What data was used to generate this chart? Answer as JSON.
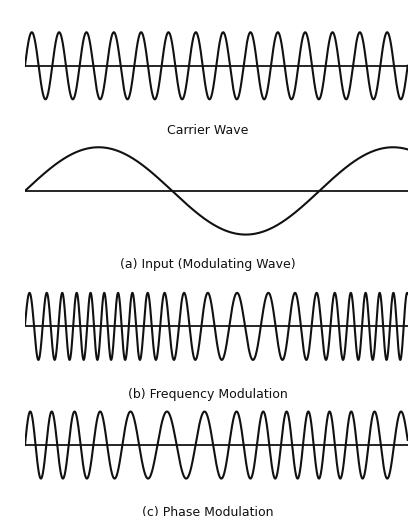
{
  "background_color": "#ffffff",
  "line_color": "#111111",
  "line_width": 1.5,
  "carrier_freq": 14,
  "modulating_freq": 1.3,
  "fm_carrier_freq": 20,
  "fm_delta_f": 8.0,
  "pm_carrier_freq": 14,
  "pm_kp": 3.14159,
  "labels": [
    "Carrier Wave",
    "(a) Input (Modulating Wave)",
    "(b) Frequency Modulation",
    "(c) Phase Modulation"
  ],
  "label_fontsize": 9,
  "fig_width": 4.16,
  "fig_height": 5.16,
  "dpi": 100,
  "n_points": 3000
}
